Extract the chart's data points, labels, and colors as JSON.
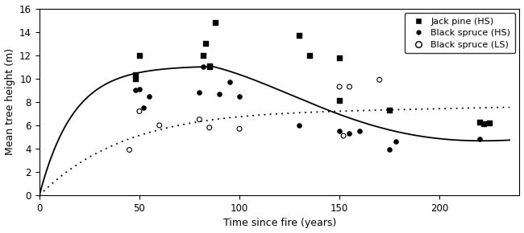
{
  "xlabel": "Time since fire (years)",
  "ylabel": "Mean tree height (m)",
  "xlim": [
    0,
    240
  ],
  "ylim": [
    0,
    16
  ],
  "xticks": [
    0,
    50,
    100,
    150,
    200
  ],
  "yticks": [
    0,
    2,
    4,
    6,
    8,
    10,
    12,
    14,
    16
  ],
  "jack_pine_HS_x": [
    48,
    48,
    50,
    82,
    83,
    85,
    85,
    88,
    130,
    135,
    150,
    150,
    175,
    220,
    222,
    225
  ],
  "jack_pine_HS_y": [
    10.0,
    10.3,
    12.0,
    12.0,
    13.0,
    11.1,
    11.0,
    14.8,
    13.7,
    12.0,
    8.1,
    11.8,
    7.3,
    6.3,
    6.1,
    6.2
  ],
  "black_spruce_HS_x": [
    48,
    50,
    52,
    55,
    80,
    82,
    85,
    90,
    95,
    100,
    130,
    150,
    155,
    160,
    175,
    178,
    220
  ],
  "black_spruce_HS_y": [
    9.0,
    9.1,
    7.5,
    8.5,
    8.8,
    11.0,
    11.1,
    8.7,
    9.7,
    8.5,
    6.0,
    5.5,
    5.3,
    5.5,
    3.9,
    4.6,
    4.8
  ],
  "black_spruce_LS_x": [
    45,
    50,
    60,
    80,
    85,
    100,
    150,
    152,
    155,
    170
  ],
  "black_spruce_LS_y": [
    3.9,
    7.2,
    6.0,
    6.5,
    5.8,
    5.7,
    9.3,
    5.1,
    9.3,
    9.9
  ],
  "solid_line_color": "#000000",
  "dashed_line_color": "#000000",
  "background_color": "#ffffff",
  "legend_jack_pine_HS": "Jack pine (HS)",
  "legend_black_spruce_HS": "Black spruce (HS)",
  "legend_black_spruce_LS": "Black spruce (LS)"
}
